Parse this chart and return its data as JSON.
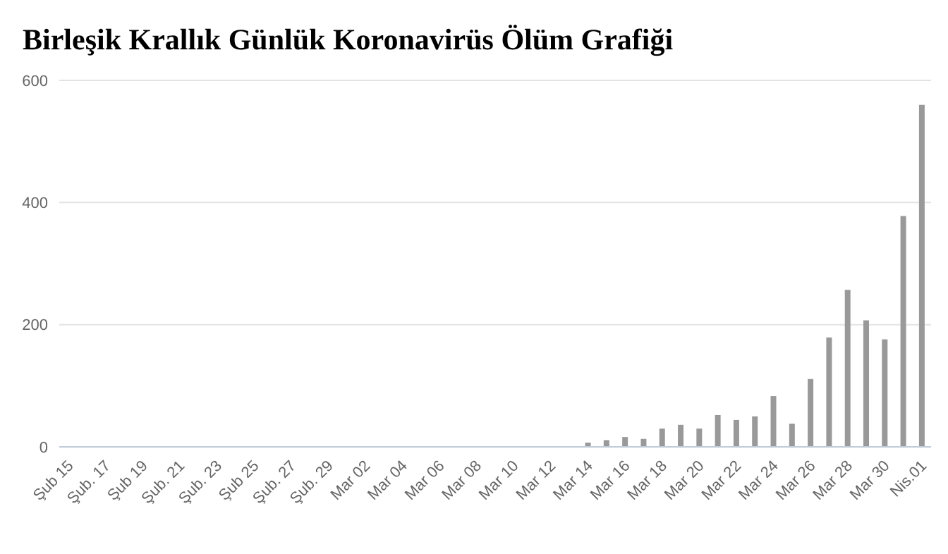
{
  "chart_data": {
    "type": "bar",
    "title": "Birleşik Krallık Günlük Koronavirüs Ölüm Grafiği",
    "categories": [
      "Şub 15",
      null,
      "Şub. 17",
      null,
      "Şub 19",
      null,
      "Şub. 21",
      null,
      "Şub. 23",
      null,
      "Şub 25",
      null,
      "Şub. 27",
      null,
      "Şub. 29",
      null,
      "Mar 02",
      null,
      "Mar 04",
      null,
      "Mar 06",
      null,
      "Mar 08",
      null,
      "Mar 10",
      null,
      "Mar 12",
      null,
      "Mar 14",
      null,
      "Mar 16",
      null,
      "Mar 18",
      null,
      "Mar 20",
      null,
      "Mar 22",
      null,
      "Mar 24",
      null,
      "Mar 26",
      null,
      "Mar 28",
      null,
      "Mar 30",
      null,
      "Nis.01"
    ],
    "values": [
      0,
      0,
      0,
      0,
      0,
      0,
      0,
      0,
      0,
      0,
      0,
      0,
      0,
      0,
      0,
      0,
      0,
      0,
      0,
      0,
      0,
      0,
      0,
      0,
      0,
      0,
      0,
      0,
      7,
      11,
      16,
      13,
      30,
      36,
      30,
      52,
      44,
      50,
      83,
      38,
      111,
      179,
      257,
      207,
      176,
      378,
      560
    ],
    "color": "#999999",
    "ylim": [
      0,
      600
    ],
    "yticks": [
      0,
      200,
      400,
      600
    ],
    "grid": "y"
  }
}
